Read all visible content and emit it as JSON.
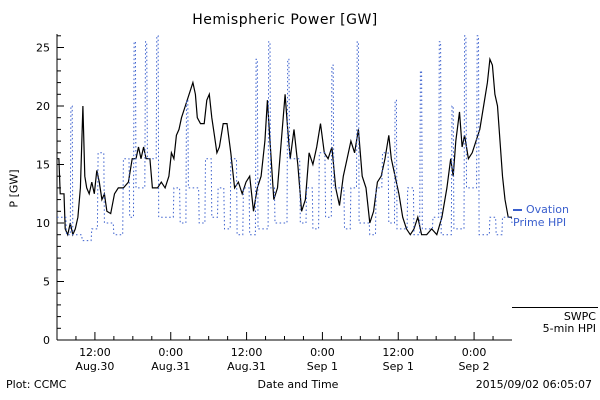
{
  "title": "Hemispheric Power [GW]",
  "footer": {
    "left": "Plot: CCMC",
    "right": "2015/09/02 06:05:07"
  },
  "colors": {
    "ovation": "#3a5fcd",
    "swpc": "#000000",
    "background": "#ffffff"
  },
  "legend": {
    "ovation_line1": "Ovation",
    "ovation_line2": "Prime HPI",
    "swpc_line1": "SWPC",
    "swpc_line2": "5-min HPI"
  },
  "chart_data": {
    "type": "line",
    "title": "Hemispheric Power [GW]",
    "xlabel": "Date and Time",
    "ylabel": "P [GW]",
    "ylim": [
      0,
      26.5
    ],
    "xlim_hours": [
      0,
      72
    ],
    "grid": false,
    "legend_position": "right-outside",
    "y_ticks": [
      0,
      5,
      10,
      15,
      20,
      25
    ],
    "x_ticks": [
      {
        "hour": 6,
        "time": "12:00",
        "date": "Aug.30"
      },
      {
        "hour": 18,
        "time": "0:00",
        "date": "Aug.31"
      },
      {
        "hour": 30,
        "time": "12:00",
        "date": "Aug.31"
      },
      {
        "hour": 42,
        "time": "0:00",
        "date": "Sep 1"
      },
      {
        "hour": 54,
        "time": "12:00",
        "date": "Sep 1"
      },
      {
        "hour": 66,
        "time": "0:00",
        "date": "Sep 2"
      }
    ],
    "series": [
      {
        "name": "SWPC 5-min HPI",
        "color": "#000000",
        "style": "solid",
        "points": [
          [
            0,
            15.5
          ],
          [
            0.3,
            15.5
          ],
          [
            0.5,
            12.5
          ],
          [
            1.1,
            12.5
          ],
          [
            1.3,
            9.5
          ],
          [
            1.7,
            9
          ],
          [
            2.1,
            10
          ],
          [
            2.5,
            9
          ],
          [
            2.9,
            9.5
          ],
          [
            3.3,
            10.5
          ],
          [
            3.7,
            13
          ],
          [
            4.1,
            20
          ],
          [
            4.4,
            14
          ],
          [
            4.7,
            13
          ],
          [
            5.1,
            12.5
          ],
          [
            5.5,
            13.5
          ],
          [
            5.9,
            12.5
          ],
          [
            6.3,
            14.5
          ],
          [
            6.7,
            13.5
          ],
          [
            7.1,
            12
          ],
          [
            7.5,
            12.5
          ],
          [
            7.9,
            11
          ],
          [
            8.5,
            10.8
          ],
          [
            9.1,
            12.5
          ],
          [
            9.7,
            13
          ],
          [
            10.5,
            13
          ],
          [
            11.3,
            13.5
          ],
          [
            11.9,
            15.5
          ],
          [
            12.5,
            15.5
          ],
          [
            12.9,
            16.5
          ],
          [
            13.3,
            15.5
          ],
          [
            13.7,
            16.5
          ],
          [
            14.1,
            15.5
          ],
          [
            14.7,
            15.5
          ],
          [
            15.1,
            13
          ],
          [
            15.9,
            13
          ],
          [
            16.5,
            13.5
          ],
          [
            17.1,
            13
          ],
          [
            17.7,
            14
          ],
          [
            18.1,
            16
          ],
          [
            18.5,
            15.5
          ],
          [
            18.9,
            17.5
          ],
          [
            19.3,
            18
          ],
          [
            19.7,
            19
          ],
          [
            20.3,
            20
          ],
          [
            20.9,
            21
          ],
          [
            21.5,
            22
          ],
          [
            21.9,
            21
          ],
          [
            22.2,
            19
          ],
          [
            22.7,
            18.5
          ],
          [
            23.3,
            18.5
          ],
          [
            23.7,
            20.5
          ],
          [
            24.1,
            21
          ],
          [
            24.5,
            19
          ],
          [
            24.9,
            17.5
          ],
          [
            25.3,
            16
          ],
          [
            25.7,
            16.5
          ],
          [
            26.3,
            18.5
          ],
          [
            26.9,
            18.5
          ],
          [
            27.5,
            16
          ],
          [
            28.1,
            13
          ],
          [
            28.7,
            13.5
          ],
          [
            29.3,
            12.5
          ],
          [
            29.9,
            13.5
          ],
          [
            30.5,
            14
          ],
          [
            31.1,
            11
          ],
          [
            31.7,
            13
          ],
          [
            32.3,
            14
          ],
          [
            32.9,
            17
          ],
          [
            33.3,
            20.5
          ],
          [
            33.7,
            17
          ],
          [
            34.3,
            12
          ],
          [
            34.9,
            13
          ],
          [
            35.5,
            17
          ],
          [
            36.1,
            21
          ],
          [
            36.5,
            18
          ],
          [
            36.9,
            15.5
          ],
          [
            37.5,
            18
          ],
          [
            38.1,
            15
          ],
          [
            38.7,
            11
          ],
          [
            39.3,
            12
          ],
          [
            39.9,
            16
          ],
          [
            40.5,
            15
          ],
          [
            41.1,
            16.5
          ],
          [
            41.7,
            18.5
          ],
          [
            42.3,
            16
          ],
          [
            42.9,
            15.5
          ],
          [
            43.5,
            16.5
          ],
          [
            44.1,
            13
          ],
          [
            44.7,
            11.5
          ],
          [
            45.3,
            14
          ],
          [
            45.9,
            15.5
          ],
          [
            46.5,
            17
          ],
          [
            47.1,
            16
          ],
          [
            47.7,
            18
          ],
          [
            48.3,
            14
          ],
          [
            48.9,
            13
          ],
          [
            49.5,
            10
          ],
          [
            50.1,
            11
          ],
          [
            50.7,
            13.5
          ],
          [
            51.3,
            14
          ],
          [
            51.9,
            15.5
          ],
          [
            52.5,
            17.5
          ],
          [
            52.9,
            15.5
          ],
          [
            53.5,
            14
          ],
          [
            54.1,
            12.5
          ],
          [
            54.7,
            10.5
          ],
          [
            55.3,
            9.5
          ],
          [
            55.9,
            9
          ],
          [
            56.5,
            9.5
          ],
          [
            57.1,
            10.5
          ],
          [
            57.7,
            9
          ],
          [
            58.5,
            9
          ],
          [
            59.3,
            9.5
          ],
          [
            60.1,
            9
          ],
          [
            60.9,
            10.5
          ],
          [
            61.7,
            13
          ],
          [
            62.3,
            15.5
          ],
          [
            62.7,
            14
          ],
          [
            63.1,
            17
          ],
          [
            63.7,
            19.5
          ],
          [
            64.1,
            16.5
          ],
          [
            64.5,
            17.5
          ],
          [
            65.1,
            15.5
          ],
          [
            65.7,
            16
          ],
          [
            66.3,
            17
          ],
          [
            66.9,
            18
          ],
          [
            67.5,
            20
          ],
          [
            68.1,
            22
          ],
          [
            68.5,
            24
          ],
          [
            68.9,
            23.5
          ],
          [
            69.3,
            21
          ],
          [
            69.7,
            20
          ],
          [
            70.1,
            17
          ],
          [
            70.5,
            14
          ],
          [
            70.9,
            12
          ],
          [
            71.4,
            10.5
          ],
          [
            72,
            10.5
          ]
        ]
      },
      {
        "name": "Ovation Prime HPI",
        "color": "#3a5fcd",
        "style": "dotted",
        "points": [
          [
            0,
            10.5
          ],
          [
            1.4,
            10.5
          ],
          [
            1.5,
            9
          ],
          [
            2.1,
            9
          ],
          [
            2.2,
            20
          ],
          [
            2.4,
            20
          ],
          [
            2.5,
            9
          ],
          [
            3.9,
            9
          ],
          [
            4.0,
            8.5
          ],
          [
            5.4,
            8.5
          ],
          [
            5.5,
            9.5
          ],
          [
            6.4,
            9.5
          ],
          [
            6.5,
            16
          ],
          [
            7.4,
            16
          ],
          [
            7.5,
            10
          ],
          [
            8.9,
            10
          ],
          [
            9.0,
            9
          ],
          [
            10.4,
            9
          ],
          [
            10.5,
            15.5
          ],
          [
            11.4,
            15.5
          ],
          [
            11.5,
            10.5
          ],
          [
            12.1,
            10.5
          ],
          [
            12.2,
            25.5
          ],
          [
            12.4,
            25.5
          ],
          [
            12.5,
            13
          ],
          [
            13.9,
            13
          ],
          [
            14.0,
            25.5
          ],
          [
            14.2,
            25.5
          ],
          [
            14.3,
            15.5
          ],
          [
            15.7,
            15.5
          ],
          [
            15.8,
            26
          ],
          [
            16.0,
            26
          ],
          [
            16.1,
            10.5
          ],
          [
            18.4,
            10.5
          ],
          [
            18.5,
            13
          ],
          [
            19.4,
            13
          ],
          [
            19.5,
            10
          ],
          [
            20.4,
            10
          ],
          [
            20.5,
            20.5
          ],
          [
            20.7,
            20.5
          ],
          [
            20.8,
            13
          ],
          [
            22.4,
            13
          ],
          [
            22.5,
            10
          ],
          [
            23.4,
            10
          ],
          [
            23.5,
            15.5
          ],
          [
            24.4,
            15.5
          ],
          [
            24.5,
            10.5
          ],
          [
            25.4,
            10.5
          ],
          [
            25.5,
            13
          ],
          [
            26.4,
            13
          ],
          [
            26.5,
            9.5
          ],
          [
            27.4,
            9.5
          ],
          [
            27.5,
            15.5
          ],
          [
            28.4,
            15.5
          ],
          [
            28.5,
            9
          ],
          [
            29.4,
            9
          ],
          [
            29.5,
            13
          ],
          [
            30.4,
            13
          ],
          [
            30.5,
            9
          ],
          [
            31.4,
            9
          ],
          [
            31.5,
            24
          ],
          [
            31.7,
            24
          ],
          [
            31.8,
            9.5
          ],
          [
            33.4,
            9.5
          ],
          [
            33.5,
            25.5
          ],
          [
            33.7,
            25.5
          ],
          [
            33.8,
            13
          ],
          [
            34.4,
            13
          ],
          [
            34.5,
            10
          ],
          [
            36.4,
            10
          ],
          [
            36.5,
            24
          ],
          [
            36.7,
            24
          ],
          [
            36.8,
            15.5
          ],
          [
            38.4,
            15.5
          ],
          [
            38.5,
            10
          ],
          [
            39.4,
            10
          ],
          [
            39.5,
            13
          ],
          [
            40.4,
            13
          ],
          [
            40.5,
            9.5
          ],
          [
            41.4,
            9.5
          ],
          [
            41.5,
            16
          ],
          [
            42.4,
            16
          ],
          [
            42.5,
            10.5
          ],
          [
            43.4,
            10.5
          ],
          [
            43.5,
            23.5
          ],
          [
            43.7,
            23.5
          ],
          [
            43.8,
            13
          ],
          [
            45.4,
            13
          ],
          [
            45.5,
            9.5
          ],
          [
            46.4,
            9.5
          ],
          [
            46.5,
            13
          ],
          [
            47.4,
            13
          ],
          [
            47.5,
            25.5
          ],
          [
            47.7,
            25.5
          ],
          [
            47.8,
            10
          ],
          [
            49.4,
            10
          ],
          [
            49.5,
            9
          ],
          [
            50.4,
            9
          ],
          [
            50.5,
            13
          ],
          [
            51.4,
            13
          ],
          [
            51.5,
            16
          ],
          [
            52.4,
            16
          ],
          [
            52.5,
            10
          ],
          [
            53.4,
            10
          ],
          [
            53.5,
            20.5
          ],
          [
            53.7,
            20.5
          ],
          [
            53.8,
            9.5
          ],
          [
            55.4,
            9.5
          ],
          [
            55.5,
            13
          ],
          [
            56.4,
            13
          ],
          [
            56.5,
            9
          ],
          [
            57.4,
            9
          ],
          [
            57.5,
            23
          ],
          [
            57.7,
            23
          ],
          [
            57.8,
            9.5
          ],
          [
            59.4,
            9.5
          ],
          [
            59.5,
            10.5
          ],
          [
            60.4,
            10.5
          ],
          [
            60.5,
            25.5
          ],
          [
            60.7,
            25.5
          ],
          [
            60.8,
            9
          ],
          [
            62.4,
            9
          ],
          [
            62.5,
            20
          ],
          [
            62.7,
            20
          ],
          [
            62.8,
            9.5
          ],
          [
            64.4,
            9.5
          ],
          [
            64.5,
            26
          ],
          [
            64.7,
            26
          ],
          [
            64.8,
            13
          ],
          [
            66.4,
            13
          ],
          [
            66.5,
            26
          ],
          [
            66.7,
            26
          ],
          [
            66.8,
            9
          ],
          [
            68.4,
            9
          ],
          [
            68.5,
            10.5
          ],
          [
            69.4,
            10.5
          ],
          [
            69.5,
            9
          ],
          [
            70.4,
            9
          ],
          [
            70.5,
            10.5
          ],
          [
            71.9,
            10.5
          ],
          [
            72,
            10
          ]
        ]
      }
    ]
  }
}
